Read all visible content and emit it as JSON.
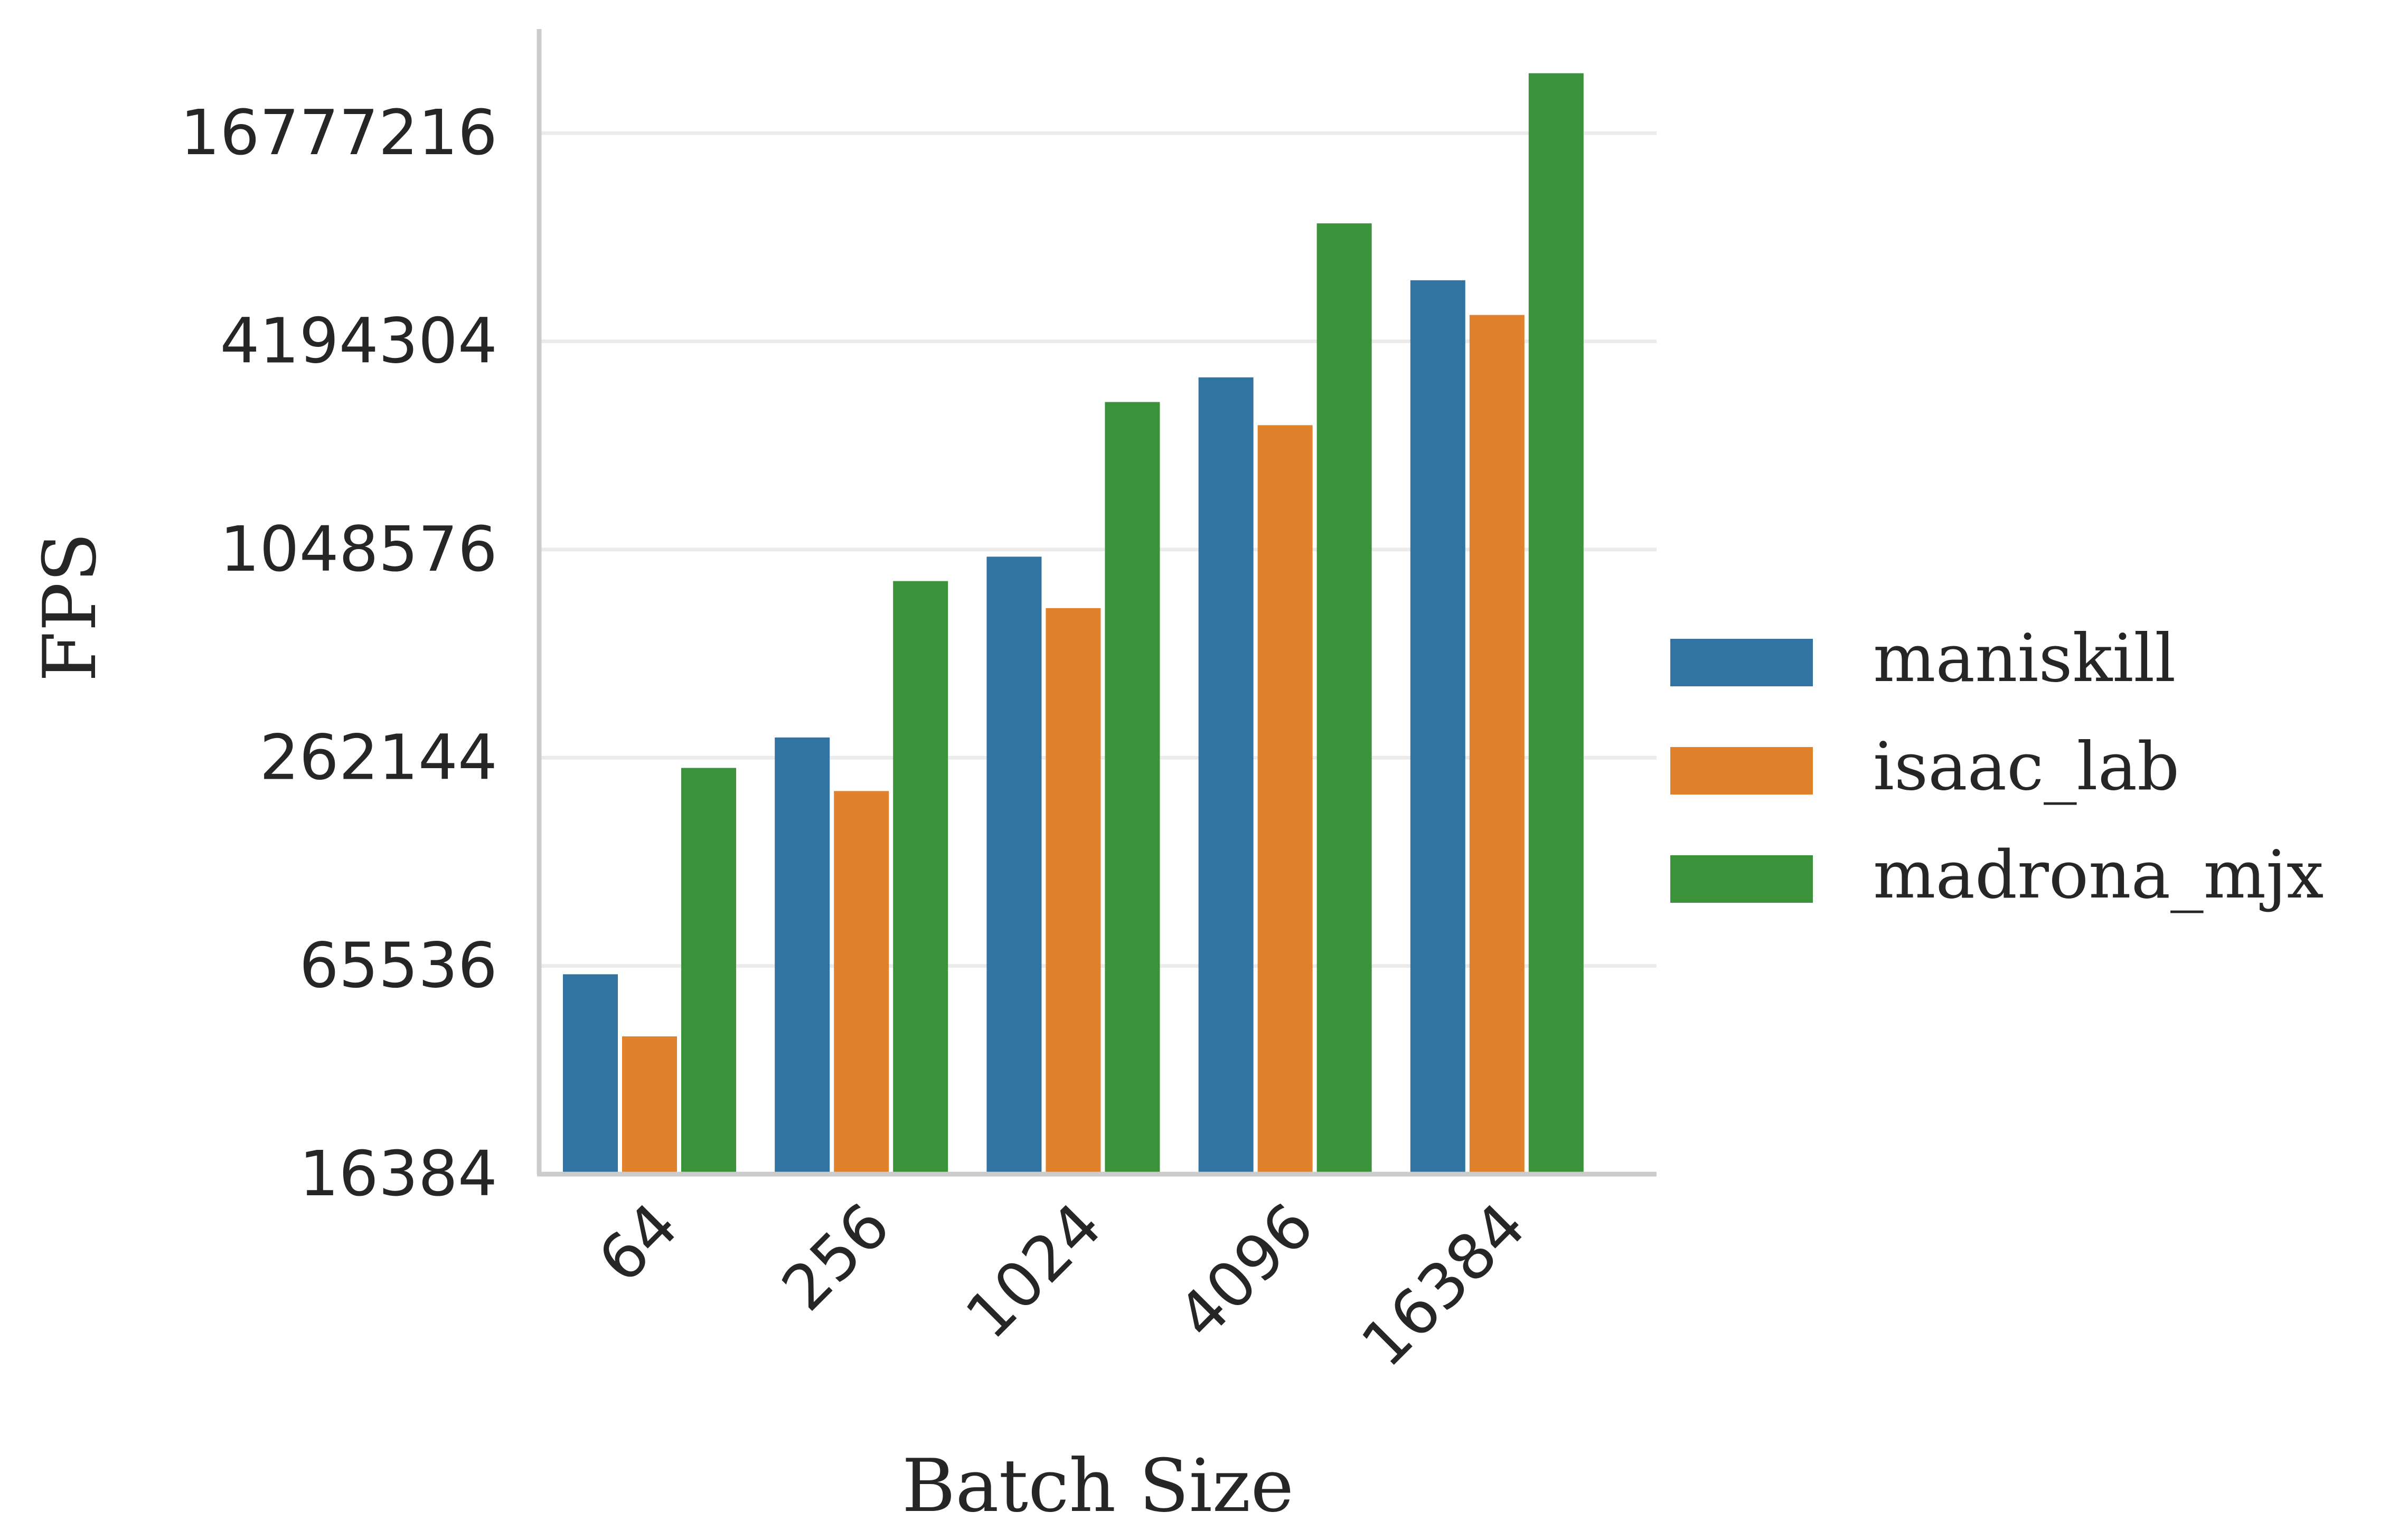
{
  "chart_data": {
    "type": "bar",
    "xlabel": "Batch Size",
    "ylabel": "FPS",
    "yscale": "log2",
    "ylim": [
      16384,
      33554432
    ],
    "yticks": [
      16384,
      65536,
      262144,
      1048576,
      4194304,
      16777216
    ],
    "ytick_labels": [
      "16384",
      "65536",
      "262144",
      "1048576",
      "4194304",
      "16777216"
    ],
    "categories": [
      "64",
      "256",
      "1024",
      "4096",
      "16384"
    ],
    "series": [
      {
        "name": "maniskill",
        "color": "#3274a1",
        "values": [
          62000,
          300000,
          1000000,
          3300000,
          6300000
        ]
      },
      {
        "name": "isaac_lab",
        "color": "#e1812c",
        "values": [
          41000,
          210000,
          710000,
          2400000,
          5000000
        ]
      },
      {
        "name": "madrona_mjx",
        "color": "#3a923a",
        "values": [
          245000,
          850000,
          2800000,
          9200000,
          25000000
        ]
      }
    ],
    "grid": "horizontal",
    "legend_position": "right"
  }
}
